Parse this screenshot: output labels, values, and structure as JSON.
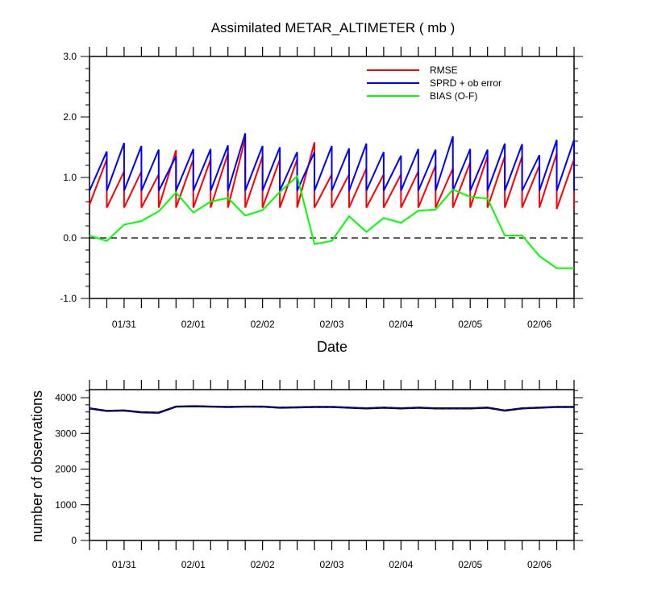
{
  "chart_data": [
    {
      "type": "line",
      "title": "Assimilated METAR_ALTIMETER ( mb )",
      "xlabel": "Date",
      "ylabel": "",
      "ylim": [
        -1.0,
        3.0
      ],
      "yticks": [
        -1.0,
        0.0,
        1.0,
        2.0,
        3.0
      ],
      "ytick_labels": [
        "-1.0",
        "0.0",
        "1.0",
        "2.0",
        "3.0"
      ],
      "xlim": [
        "01/30 12:00",
        "02/06 12:00"
      ],
      "xtick_labels": [
        "01/31",
        "02/01",
        "02/02",
        "02/03",
        "02/04",
        "02/05",
        "02/06"
      ],
      "legend_position": "top-right",
      "reference_line": {
        "y": 0.0,
        "style": "dashed"
      },
      "series": [
        {
          "name": "RMSE",
          "color": "#ff0000",
          "x": [
            "01/30 12:00",
            "01/30 18:00",
            "01/31 00:00",
            "01/31 06:00",
            "01/31 12:00",
            "01/31 18:00",
            "02/01 00:00",
            "02/01 06:00",
            "02/01 12:00",
            "02/01 18:00",
            "02/02 00:00",
            "02/02 06:00",
            "02/02 12:00",
            "02/02 18:00",
            "02/03 00:00",
            "02/03 06:00",
            "02/03 12:00",
            "02/03 18:00",
            "02/04 00:00",
            "02/04 06:00",
            "02/04 12:00",
            "02/04 18:00",
            "02/05 00:00",
            "02/05 06:00",
            "02/05 12:00",
            "02/05 18:00",
            "02/06 00:00",
            "02/06 06:00",
            "02/06 12:00"
          ],
          "pairs": [
            [
              0.55,
              1.3
            ],
            [
              0.5,
              1.1
            ],
            [
              0.5,
              1.1
            ],
            [
              0.5,
              1.05
            ],
            [
              0.5,
              1.45
            ],
            [
              0.5,
              1.3
            ],
            [
              0.5,
              1.3
            ],
            [
              0.5,
              1.4
            ],
            [
              0.5,
              1.65
            ],
            [
              0.5,
              1.35
            ],
            [
              0.5,
              1.3
            ],
            [
              0.5,
              1.3
            ],
            [
              0.5,
              1.58
            ],
            [
              0.5,
              1.05
            ],
            [
              0.5,
              1.05
            ],
            [
              0.5,
              1.15
            ],
            [
              0.5,
              1.05
            ],
            [
              0.5,
              1.05
            ],
            [
              0.5,
              1.1
            ],
            [
              0.5,
              1.2
            ],
            [
              0.5,
              1.15
            ],
            [
              0.5,
              1.25
            ],
            [
              0.5,
              1.35
            ],
            [
              0.5,
              1.35
            ],
            [
              0.5,
              1.35
            ],
            [
              0.5,
              1.2
            ],
            [
              0.5,
              1.4
            ],
            [
              0.48,
              1.3
            ],
            [
              0.48,
              1.3
            ]
          ]
        },
        {
          "name": "SPRD + ob error",
          "color": "#0000ff",
          "x": [
            "01/30 12:00",
            "01/30 18:00",
            "01/31 00:00",
            "01/31 06:00",
            "01/31 12:00",
            "01/31 18:00",
            "02/01 00:00",
            "02/01 06:00",
            "02/01 12:00",
            "02/01 18:00",
            "02/02 00:00",
            "02/02 06:00",
            "02/02 12:00",
            "02/02 18:00",
            "02/03 00:00",
            "02/03 06:00",
            "02/03 12:00",
            "02/03 18:00",
            "02/04 00:00",
            "02/04 06:00",
            "02/04 12:00",
            "02/04 18:00",
            "02/05 00:00",
            "02/05 06:00",
            "02/05 12:00",
            "02/05 18:00",
            "02/06 00:00",
            "02/06 06:00",
            "02/06 12:00"
          ],
          "pairs": [
            [
              0.78,
              1.43
            ],
            [
              0.78,
              1.57
            ],
            [
              0.78,
              1.52
            ],
            [
              0.78,
              1.46
            ],
            [
              0.78,
              1.35
            ],
            [
              0.78,
              1.47
            ],
            [
              0.78,
              1.47
            ],
            [
              0.78,
              1.53
            ],
            [
              0.78,
              1.73
            ],
            [
              0.78,
              1.52
            ],
            [
              0.78,
              1.5
            ],
            [
              0.78,
              1.42
            ],
            [
              0.78,
              1.42
            ],
            [
              0.78,
              1.52
            ],
            [
              0.78,
              1.48
            ],
            [
              0.78,
              1.56
            ],
            [
              0.78,
              1.42
            ],
            [
              0.78,
              1.36
            ],
            [
              0.78,
              1.47
            ],
            [
              0.78,
              1.46
            ],
            [
              0.78,
              1.68
            ],
            [
              0.78,
              1.47
            ],
            [
              0.78,
              1.46
            ],
            [
              0.78,
              1.56
            ],
            [
              0.78,
              1.55
            ],
            [
              0.78,
              1.37
            ],
            [
              0.78,
              1.62
            ],
            [
              0.78,
              1.62
            ],
            [
              0.78,
              1.62
            ]
          ]
        },
        {
          "name": "BIAS (O-F)",
          "color": "#00ff00",
          "x": [
            "01/30 12:00",
            "01/30 18:00",
            "01/31 00:00",
            "01/31 06:00",
            "01/31 12:00",
            "01/31 18:00",
            "02/01 00:00",
            "02/01 06:00",
            "02/01 12:00",
            "02/01 18:00",
            "02/02 00:00",
            "02/02 06:00",
            "02/02 12:00",
            "02/02 18:00",
            "02/03 00:00",
            "02/03 06:00",
            "02/03 12:00",
            "02/03 18:00",
            "02/04 00:00",
            "02/04 06:00",
            "02/04 12:00",
            "02/04 18:00",
            "02/05 00:00",
            "02/05 06:00",
            "02/05 12:00",
            "02/05 18:00",
            "02/06 00:00",
            "02/06 06:00",
            "02/06 12:00"
          ],
          "values": [
            0.04,
            -0.05,
            0.22,
            0.28,
            0.44,
            0.75,
            0.42,
            0.6,
            0.66,
            0.37,
            0.46,
            0.76,
            1.02,
            -0.1,
            -0.05,
            0.36,
            0.1,
            0.33,
            0.25,
            0.45,
            0.47,
            0.8,
            0.68,
            0.65,
            0.04,
            0.04,
            -0.3,
            -0.5,
            -0.5
          ]
        }
      ]
    },
    {
      "type": "line",
      "title": "",
      "xlabel": "",
      "ylabel": "number of observations",
      "ylim": [
        0,
        4000
      ],
      "ytick_labels": [
        "0",
        "1000",
        "2000",
        "3000",
        "4000"
      ],
      "xtick_labels": [
        "01/31",
        "02/01",
        "02/02",
        "02/03",
        "02/04",
        "02/05",
        "02/06"
      ],
      "series": [
        {
          "color": "#000000",
          "x": [
            "01/30 12:00",
            "01/30 18:00",
            "01/31 00:00",
            "01/31 06:00",
            "01/31 12:00",
            "01/31 18:00",
            "02/01 00:00",
            "02/01 06:00",
            "02/01 12:00",
            "02/01 18:00",
            "02/02 00:00",
            "02/02 06:00",
            "02/02 12:00",
            "02/02 18:00",
            "02/03 00:00",
            "02/03 06:00",
            "02/03 12:00",
            "02/03 18:00",
            "02/04 00:00",
            "02/04 06:00",
            "02/04 12:00",
            "02/04 18:00",
            "02/05 00:00",
            "02/05 06:00",
            "02/05 12:00",
            "02/05 18:00",
            "02/06 00:00",
            "02/06 06:00",
            "02/06 12:00"
          ],
          "values": [
            3700,
            3630,
            3640,
            3590,
            3580,
            3750,
            3760,
            3750,
            3740,
            3750,
            3750,
            3720,
            3730,
            3740,
            3740,
            3720,
            3700,
            3720,
            3700,
            3720,
            3700,
            3700,
            3700,
            3720,
            3640,
            3700,
            3720,
            3740,
            3740
          ]
        },
        {
          "color": "#0000ff",
          "x": [
            "01/30 12:00",
            "01/30 18:00",
            "01/31 00:00",
            "01/31 06:00",
            "01/31 12:00",
            "01/31 18:00",
            "02/01 00:00",
            "02/01 06:00",
            "02/01 12:00",
            "02/01 18:00",
            "02/02 00:00",
            "02/02 06:00",
            "02/02 12:00",
            "02/02 18:00",
            "02/03 00:00",
            "02/03 06:00",
            "02/03 12:00",
            "02/03 18:00",
            "02/04 00:00",
            "02/04 06:00",
            "02/04 12:00",
            "02/04 18:00",
            "02/05 00:00",
            "02/05 06:00",
            "02/05 12:00",
            "02/05 18:00",
            "02/06 00:00",
            "02/06 06:00",
            "02/06 12:00"
          ],
          "values": [
            3700,
            3630,
            3640,
            3590,
            3580,
            3750,
            3760,
            3750,
            3740,
            3750,
            3750,
            3720,
            3730,
            3740,
            3740,
            3720,
            3700,
            3720,
            3700,
            3720,
            3700,
            3700,
            3700,
            3720,
            3640,
            3700,
            3720,
            3740,
            3740
          ]
        }
      ]
    }
  ]
}
